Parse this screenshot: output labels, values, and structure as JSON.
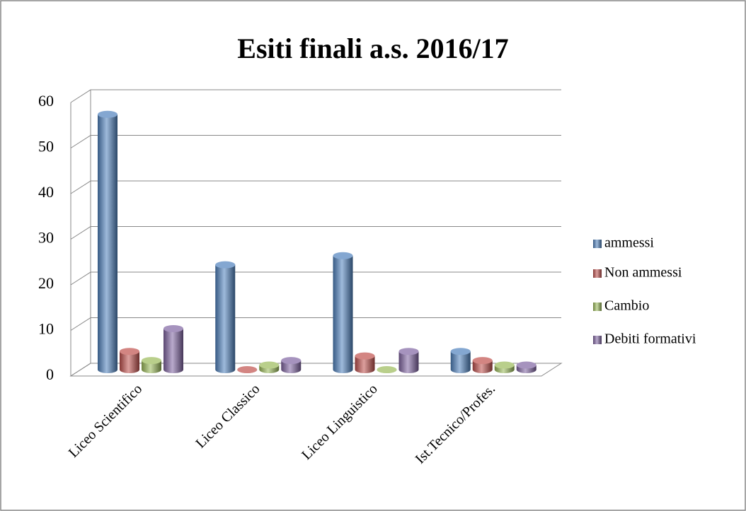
{
  "chart_data": {
    "type": "bar3d",
    "title": "Esiti finali a.s. 2016/17",
    "categories": [
      "Liceo Scientifico",
      "Liceo Classico",
      "Liceo Linguistico",
      "Ist.Tecnico/Profes."
    ],
    "series": [
      {
        "name": "ammessi",
        "color": "#4f81bd",
        "values": [
          56,
          23,
          25,
          4
        ]
      },
      {
        "name": "Non ammessi",
        "color": "#c0504d",
        "values": [
          4,
          0,
          3,
          2
        ]
      },
      {
        "name": "Cambio",
        "color": "#9bbb59",
        "values": [
          2,
          1,
          0,
          1
        ]
      },
      {
        "name": "Debiti formativi",
        "color": "#8064a2",
        "values": [
          9,
          2,
          4,
          1
        ]
      }
    ],
    "ylim": [
      0,
      60
    ],
    "yticks": [
      0,
      10,
      20,
      30,
      40,
      50,
      60
    ],
    "grid": true,
    "legend": "right"
  }
}
